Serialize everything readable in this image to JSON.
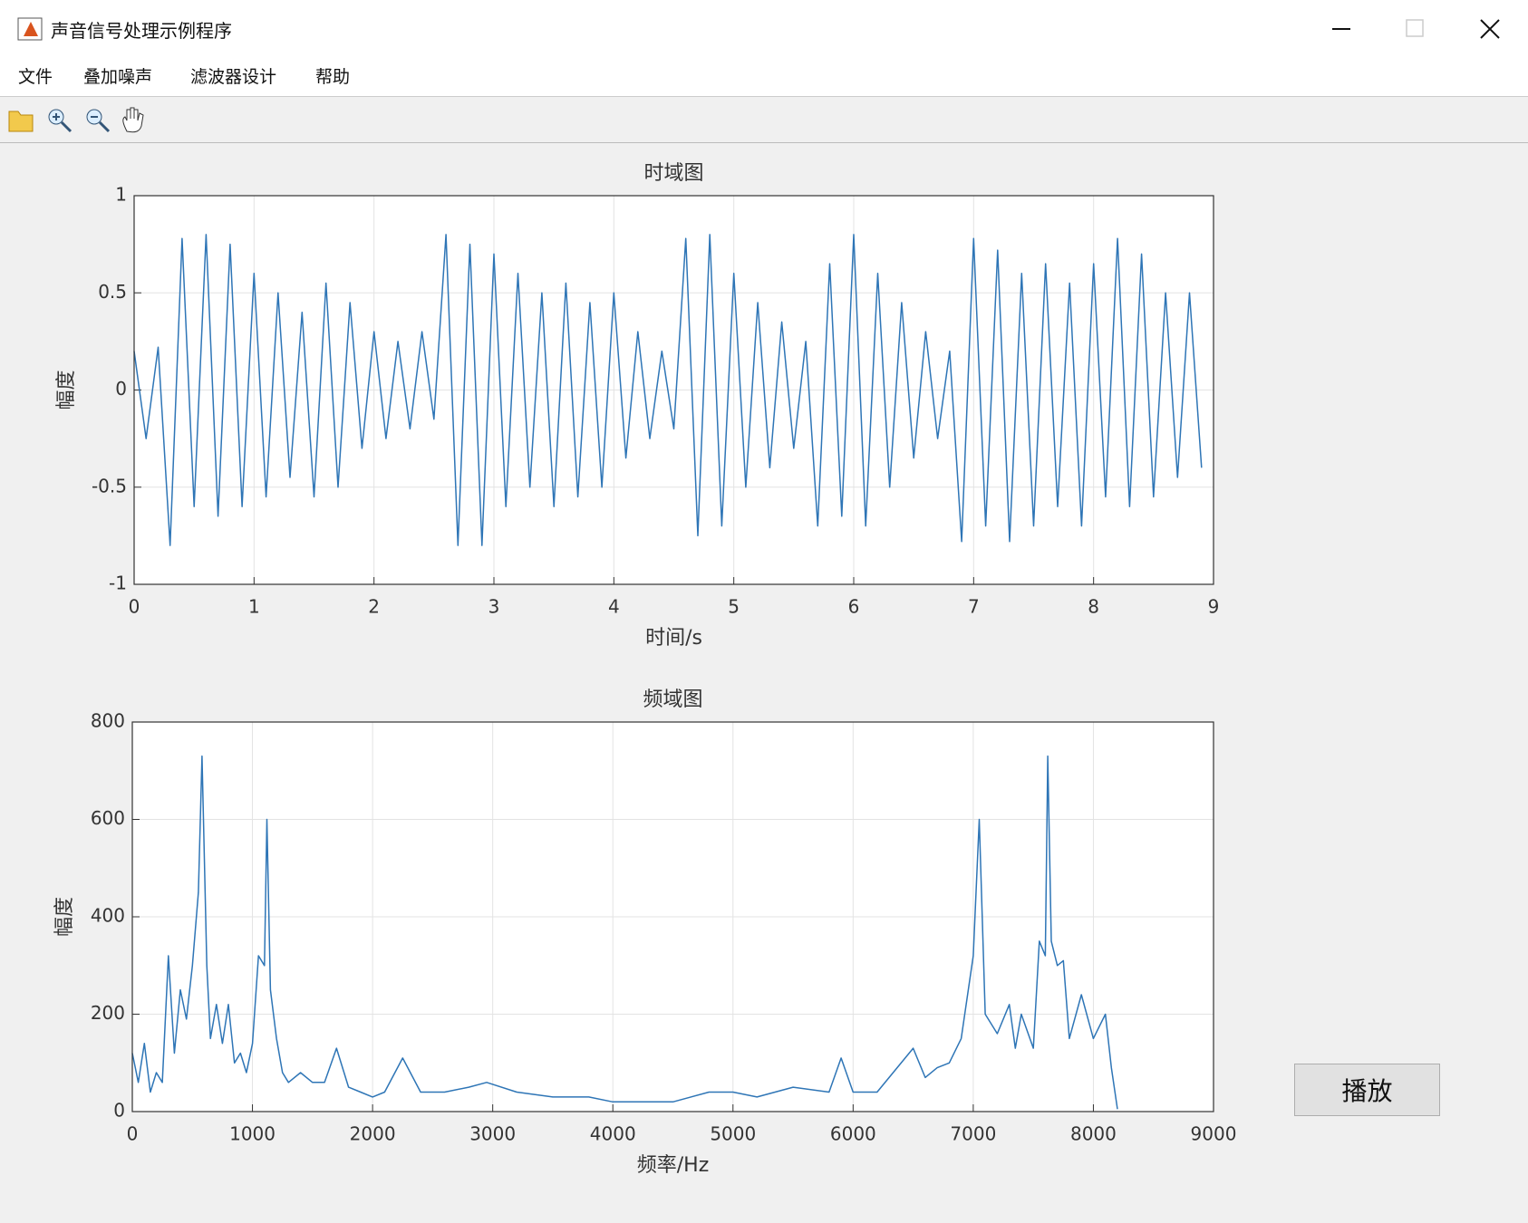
{
  "window": {
    "title": "声音信号处理示例程序",
    "menu": [
      "文件",
      "叠加噪声",
      "滤波器设计",
      "帮助"
    ],
    "button": "播放"
  },
  "chart_data": [
    {
      "type": "line",
      "title": "时域图",
      "x_label": "时间/s",
      "y_label": "幅度",
      "color": "#2e75b6",
      "grid": true,
      "xlim": [
        0,
        9
      ],
      "ylim": [
        -1,
        1
      ],
      "xticks": [
        0,
        1,
        2,
        3,
        4,
        5,
        6,
        7,
        8,
        9
      ],
      "yticks": [
        -1,
        -0.5,
        0,
        0.5,
        1
      ],
      "x": [
        0,
        0.1,
        0.2,
        0.3,
        0.4,
        0.5,
        0.6,
        0.7,
        0.8,
        0.9,
        1.0,
        1.1,
        1.2,
        1.3,
        1.4,
        1.5,
        1.6,
        1.7,
        1.8,
        1.9,
        2.0,
        2.1,
        2.2,
        2.3,
        2.4,
        2.5,
        2.6,
        2.7,
        2.8,
        2.9,
        3.0,
        3.1,
        3.2,
        3.3,
        3.4,
        3.5,
        3.6,
        3.7,
        3.8,
        3.9,
        4.0,
        4.1,
        4.2,
        4.3,
        4.4,
        4.5,
        4.6,
        4.7,
        4.8,
        4.9,
        5.0,
        5.1,
        5.2,
        5.3,
        5.4,
        5.5,
        5.6,
        5.7,
        5.8,
        5.9,
        6.0,
        6.1,
        6.2,
        6.3,
        6.4,
        6.5,
        6.6,
        6.7,
        6.8,
        6.9,
        7.0,
        7.1,
        7.2,
        7.3,
        7.4,
        7.5,
        7.6,
        7.7,
        7.8,
        7.9,
        8.0,
        8.1,
        8.2,
        8.3,
        8.4,
        8.5,
        8.6,
        8.7,
        8.8,
        8.9
      ],
      "values": [
        0.2,
        -0.25,
        0.22,
        -0.8,
        0.78,
        -0.6,
        0.8,
        -0.65,
        0.75,
        -0.6,
        0.6,
        -0.55,
        0.5,
        -0.45,
        0.4,
        -0.55,
        0.55,
        -0.5,
        0.45,
        -0.3,
        0.3,
        -0.25,
        0.25,
        -0.2,
        0.3,
        -0.15,
        0.8,
        -0.8,
        0.75,
        -0.8,
        0.7,
        -0.6,
        0.6,
        -0.5,
        0.5,
        -0.6,
        0.55,
        -0.55,
        0.45,
        -0.5,
        0.5,
        -0.35,
        0.3,
        -0.25,
        0.2,
        -0.2,
        0.78,
        -0.75,
        0.8,
        -0.7,
        0.6,
        -0.5,
        0.45,
        -0.4,
        0.35,
        -0.3,
        0.25,
        -0.7,
        0.65,
        -0.65,
        0.8,
        -0.7,
        0.6,
        -0.5,
        0.45,
        -0.35,
        0.3,
        -0.25,
        0.2,
        -0.78,
        0.78,
        -0.7,
        0.72,
        -0.78,
        0.6,
        -0.7,
        0.65,
        -0.6,
        0.55,
        -0.7,
        0.65,
        -0.55,
        0.78,
        -0.6,
        0.7,
        -0.55,
        0.5,
        -0.45,
        0.5,
        -0.4
      ]
    },
    {
      "type": "line",
      "title": "频域图",
      "x_label": "频率/Hz",
      "y_label": "幅度",
      "color": "#2e75b6",
      "grid": true,
      "xlim": [
        0,
        9000
      ],
      "ylim": [
        0,
        800
      ],
      "xticks": [
        0,
        1000,
        2000,
        3000,
        4000,
        5000,
        6000,
        7000,
        8000,
        9000
      ],
      "yticks": [
        0,
        200,
        400,
        600,
        800
      ],
      "x": [
        0,
        50,
        100,
        150,
        200,
        250,
        300,
        350,
        400,
        450,
        500,
        550,
        580,
        620,
        650,
        700,
        750,
        800,
        850,
        900,
        950,
        1000,
        1050,
        1100,
        1120,
        1150,
        1200,
        1250,
        1300,
        1400,
        1500,
        1600,
        1700,
        1800,
        1900,
        2000,
        2100,
        2250,
        2400,
        2600,
        2800,
        2950,
        3200,
        3500,
        3800,
        4000,
        4200,
        4500,
        4800,
        5000,
        5200,
        5500,
        5800,
        5900,
        6000,
        6200,
        6500,
        6600,
        6700,
        6800,
        6900,
        7000,
        7050,
        7100,
        7200,
        7300,
        7350,
        7400,
        7500,
        7550,
        7600,
        7620,
        7650,
        7700,
        7750,
        7800,
        7900,
        8000,
        8100,
        8150,
        8200
      ],
      "values": [
        120,
        60,
        140,
        40,
        80,
        60,
        320,
        120,
        250,
        190,
        300,
        450,
        730,
        300,
        150,
        220,
        140,
        220,
        100,
        120,
        80,
        140,
        320,
        300,
        600,
        250,
        150,
        80,
        60,
        80,
        60,
        60,
        130,
        50,
        40,
        30,
        40,
        110,
        40,
        40,
        50,
        60,
        40,
        30,
        30,
        20,
        20,
        20,
        40,
        40,
        30,
        50,
        40,
        110,
        40,
        40,
        130,
        70,
        90,
        100,
        150,
        320,
        600,
        200,
        160,
        220,
        130,
        200,
        130,
        350,
        320,
        730,
        350,
        300,
        310,
        150,
        240,
        150,
        200,
        90,
        5
      ]
    }
  ]
}
